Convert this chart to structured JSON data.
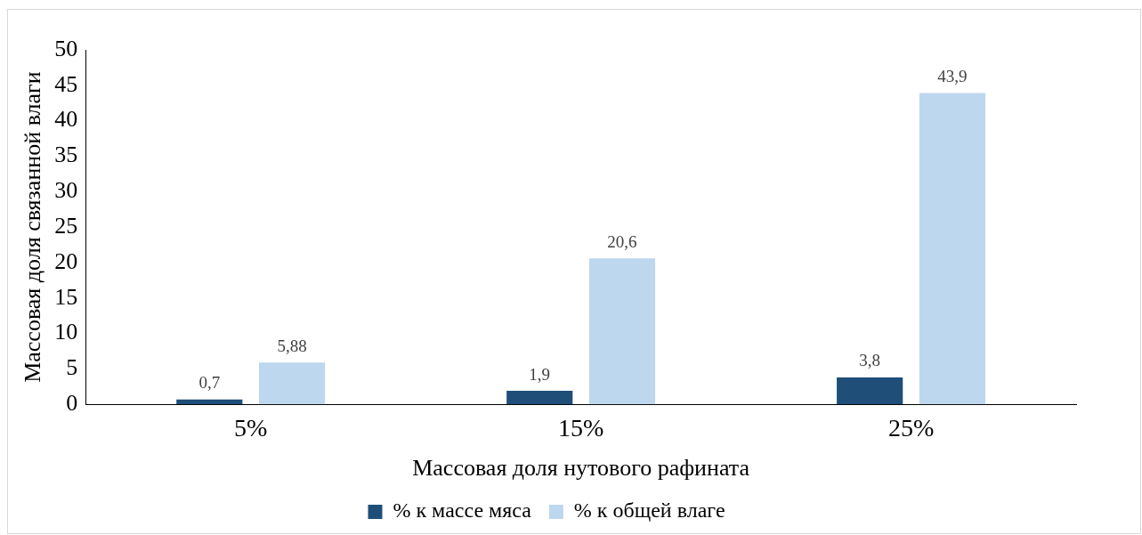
{
  "chart_data": {
    "type": "bar",
    "xlabel": "Массовая доля нутового рафината",
    "ylabel": "Массовая доля связанной влаги",
    "categories": [
      "5%",
      "15%",
      "25%"
    ],
    "series": [
      {
        "name": "% к массе мяса",
        "color": "#1f4e79",
        "values": [
          0.7,
          1.9,
          3.8
        ],
        "value_labels": [
          "0,7",
          "1,9",
          "3,8"
        ]
      },
      {
        "name": "% к общей влаге",
        "color": "#bdd7ee",
        "values": [
          5.88,
          20.6,
          43.9
        ],
        "value_labels": [
          "5,88",
          "20,6",
          "43,9"
        ]
      }
    ],
    "ylim": [
      0,
      50
    ],
    "yticks": [
      0,
      5,
      10,
      15,
      20,
      25,
      30,
      35,
      40,
      45,
      50
    ],
    "grid": false,
    "legend": "bottom"
  }
}
